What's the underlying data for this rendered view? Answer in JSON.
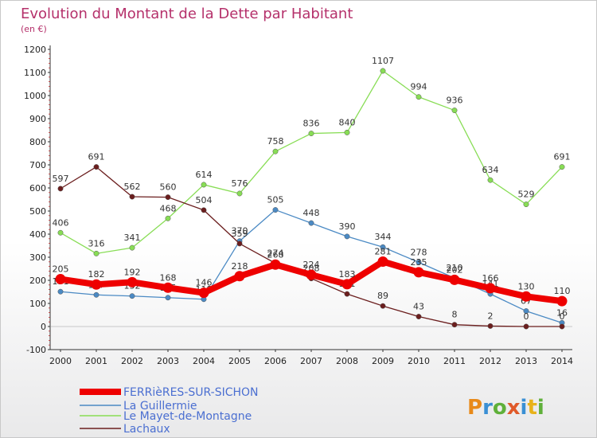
{
  "chart_data": {
    "type": "line",
    "title": "Evolution du Montant de la Dette par Habitant",
    "subtitle": "(en €)",
    "x": [
      "2000",
      "2001",
      "2002",
      "2003",
      "2004",
      "2005",
      "2006",
      "2007",
      "2008",
      "2009",
      "2010",
      "2011",
      "2012",
      "2013",
      "2014"
    ],
    "ylim": [
      -100,
      1200
    ],
    "yticks": [
      -100,
      0,
      100,
      200,
      300,
      400,
      500,
      600,
      700,
      800,
      900,
      1000,
      1100,
      1200
    ],
    "grid": false,
    "legend_position": "bottom-left",
    "series": [
      {
        "name": "FERRièRES-SUR-SICHON",
        "color": "#ee0000",
        "values": [
          205,
          182,
          192,
          168,
          146,
          218,
          268,
          224,
          183,
          281,
          235,
          202,
          166,
          130,
          110
        ]
      },
      {
        "name": "La Guillermie",
        "color": "#4b8ac4",
        "values": [
          151,
          137,
          132,
          125,
          118,
          370,
          505,
          448,
          390,
          344,
          278,
          210,
          141,
          67,
          16
        ]
      },
      {
        "name": "Le Mayet-de-Montagne",
        "color": "#88dd55",
        "values": [
          406,
          316,
          341,
          468,
          614,
          576,
          758,
          836,
          840,
          1107,
          994,
          936,
          634,
          529,
          691
        ]
      },
      {
        "name": "Lachaux",
        "color": "#6b1e1e",
        "values": [
          597,
          691,
          562,
          560,
          504,
          359,
          274,
          208,
          141,
          89,
          43,
          8,
          2,
          0,
          0
        ]
      }
    ],
    "watermark": "Proxiti"
  }
}
